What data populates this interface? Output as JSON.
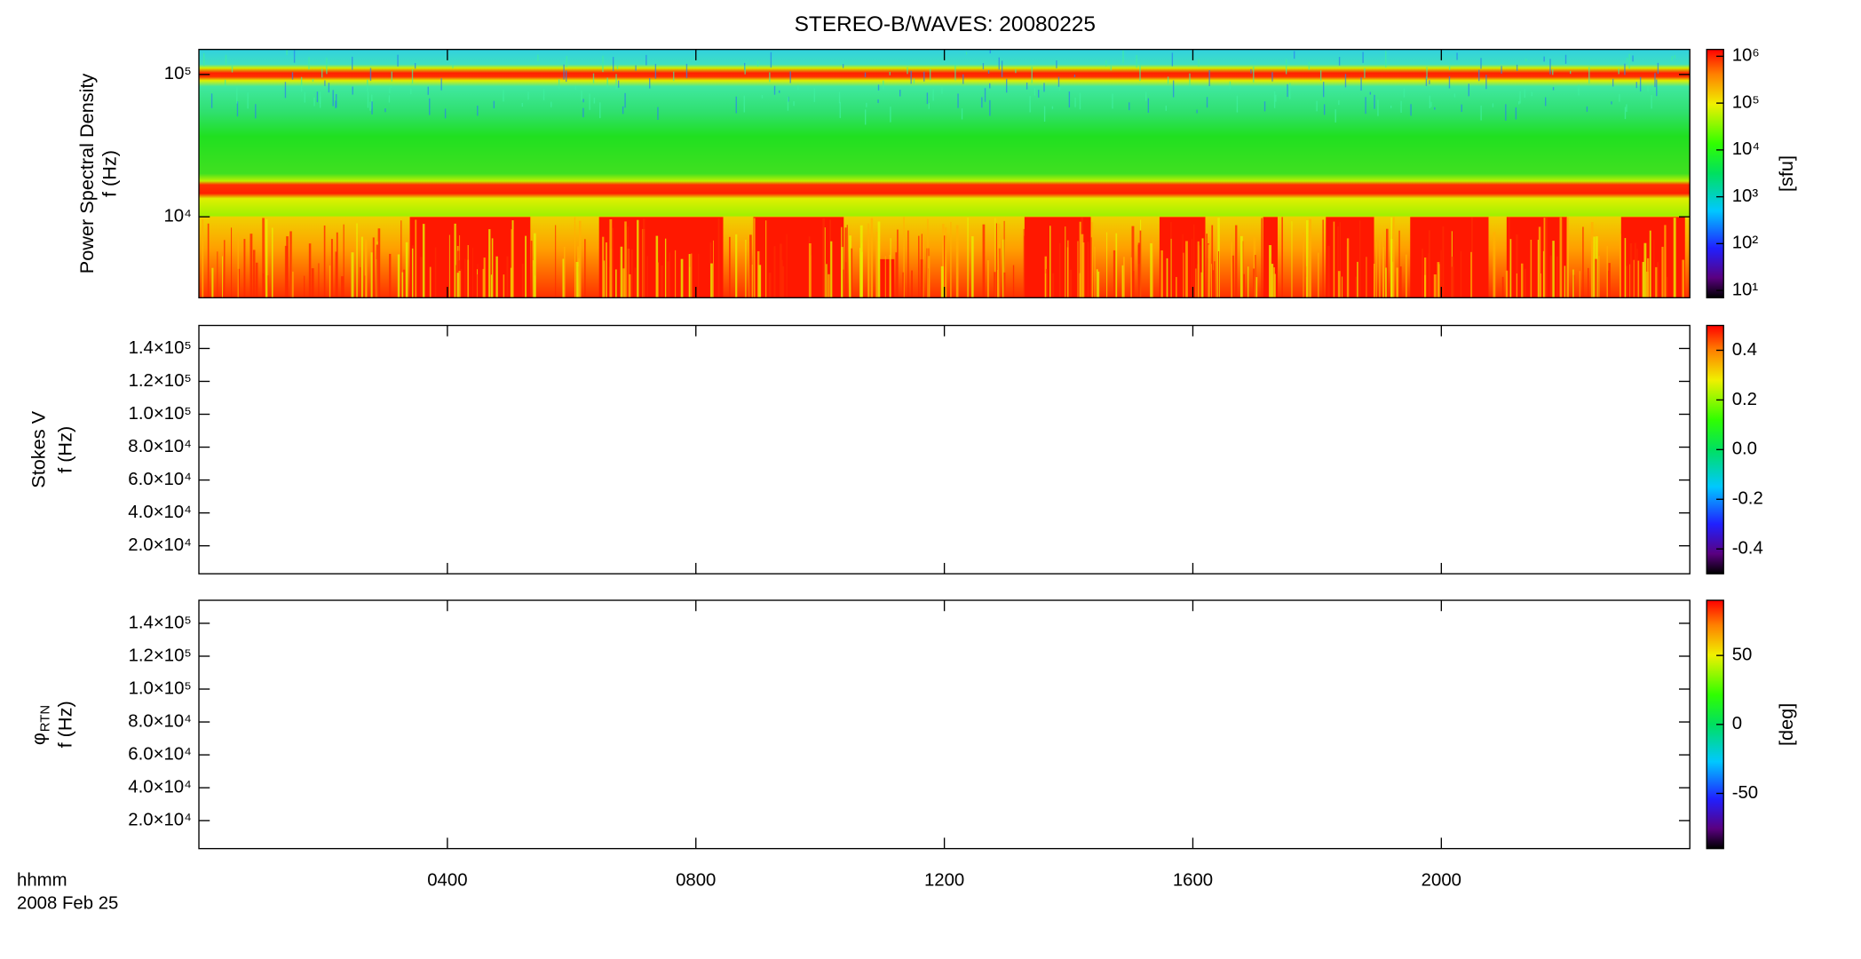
{
  "title": "STEREO-B/WAVES: 20080225",
  "xlabel": "hhmm",
  "xdate": "2008 Feb 25",
  "xaxis": {
    "xlim": [
      0,
      24
    ],
    "xticks": [
      {
        "value": 4,
        "label": "0400"
      },
      {
        "value": 8,
        "label": "0800"
      },
      {
        "value": 12,
        "label": "1200"
      },
      {
        "value": 16,
        "label": "1600"
      },
      {
        "value": 20,
        "label": "2000"
      }
    ]
  },
  "chart_data": [
    {
      "type": "spectrogram",
      "ylabel": [
        "Power Spectral Density",
        "f (Hz)"
      ],
      "ylog": true,
      "ylim": [
        2700,
        150000
      ],
      "yticks": [
        {
          "value": 10000,
          "label": "10⁴"
        },
        {
          "value": 100000,
          "label": "10⁵"
        }
      ],
      "colorbar": {
        "log": true,
        "zlim": [
          7,
          1400000
        ],
        "label": "[sfu]",
        "ticks": [
          {
            "value": 10,
            "label": "10¹"
          },
          {
            "value": 100,
            "label": "10²"
          },
          {
            "value": 1000,
            "label": "10³"
          },
          {
            "value": 10000,
            "label": "10⁴"
          },
          {
            "value": 100000,
            "label": "10⁵"
          },
          {
            "value": 1000000,
            "label": "10⁶"
          }
        ]
      }
    },
    {
      "type": "spectrogram",
      "ylabel": [
        "Stokes V",
        "f (Hz)"
      ],
      "ylog": false,
      "ylim": [
        3000,
        154000
      ],
      "yticks": [
        {
          "value": 20000,
          "label": "2.0×10⁴"
        },
        {
          "value": 40000,
          "label": "4.0×10⁴"
        },
        {
          "value": 60000,
          "label": "6.0×10⁴"
        },
        {
          "value": 80000,
          "label": "8.0×10⁴"
        },
        {
          "value": 100000,
          "label": "1.0×10⁵"
        },
        {
          "value": 120000,
          "label": "1.2×10⁵"
        },
        {
          "value": 140000,
          "label": "1.4×10⁵"
        }
      ],
      "colorbar": {
        "log": false,
        "zlim": [
          -0.5,
          0.5
        ],
        "ticks": [
          -0.4,
          -0.2,
          {
            "value": 0,
            "label": "0.0"
          },
          0.2,
          0.4
        ]
      }
    },
    {
      "type": "spectrogram",
      "ylabel": [
        "φ",
        "f (Hz)"
      ],
      "ylabel_sub": "RTN",
      "ylog": false,
      "ylim": [
        3000,
        154000
      ],
      "yticks": [
        {
          "value": 20000,
          "label": "2.0×10⁴"
        },
        {
          "value": 40000,
          "label": "4.0×10⁴"
        },
        {
          "value": 60000,
          "label": "6.0×10⁴"
        },
        {
          "value": 80000,
          "label": "8.0×10⁴"
        },
        {
          "value": 100000,
          "label": "1.0×10⁵"
        },
        {
          "value": 120000,
          "label": "1.2×10⁵"
        },
        {
          "value": 140000,
          "label": "1.4×10⁵"
        }
      ],
      "colorbar": {
        "log": false,
        "zlim": [
          -90,
          90
        ],
        "label": "[deg]",
        "ticks": [
          -50,
          0,
          50
        ]
      }
    }
  ]
}
